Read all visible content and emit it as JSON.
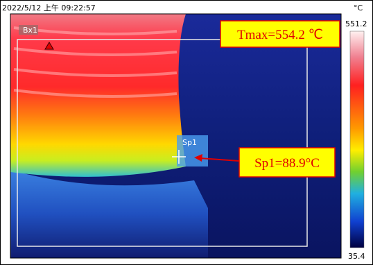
{
  "header": {
    "timestamp": "2022/5/12 上午 09:22:57",
    "unit": "°C"
  },
  "scale": {
    "max": "551.2",
    "min": "35.4"
  },
  "overlay": {
    "box_label": "Bx1",
    "spot_label": "Sp1"
  },
  "annotations": {
    "tmax": "Tmax=554.2 ℃",
    "spot": "Sp1=88.9°C"
  }
}
